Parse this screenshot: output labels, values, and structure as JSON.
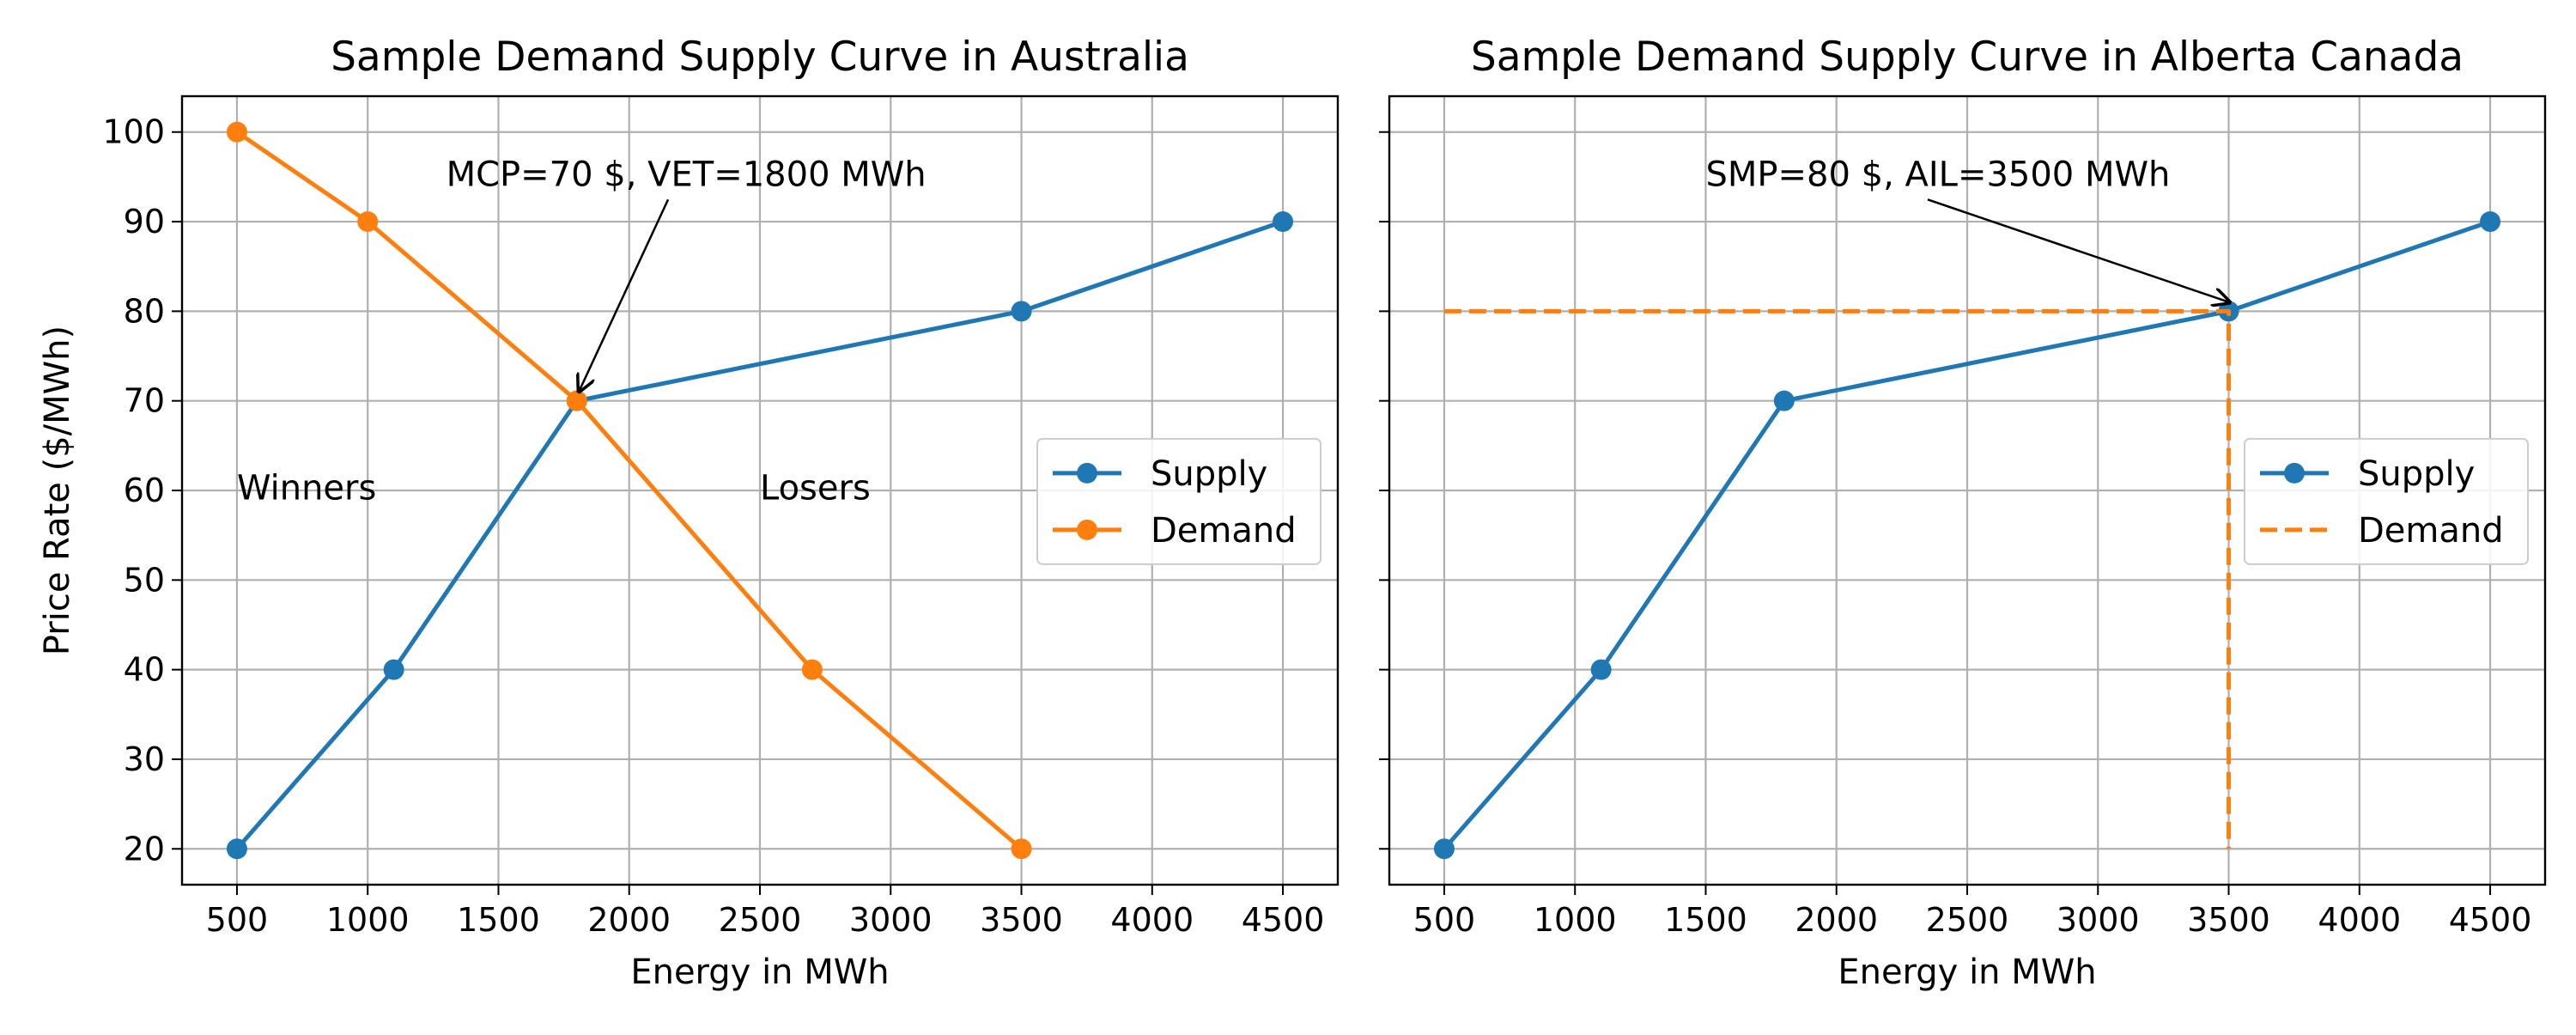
{
  "chart_data": [
    {
      "type": "line",
      "title": "Sample Demand Supply Curve in Australia",
      "xlabel": "Energy in MWh",
      "ylabel": "Price Rate ($/MWh)",
      "xlim": [
        290,
        4710
      ],
      "ylim": [
        16,
        104
      ],
      "xticks": [
        500,
        1000,
        1500,
        2000,
        2500,
        3000,
        3500,
        4000,
        4500
      ],
      "yticks": [
        20,
        30,
        40,
        50,
        60,
        70,
        80,
        90,
        100
      ],
      "grid": true,
      "legend_position": "center-right",
      "series": [
        {
          "name": "Supply",
          "color": "#1f77b4",
          "style": "solid",
          "marker": "circle",
          "x": [
            500,
            1100,
            1800,
            3500,
            4500
          ],
          "y": [
            20,
            40,
            70,
            80,
            90
          ]
        },
        {
          "name": "Demand",
          "color": "#ff7f0e",
          "style": "solid",
          "marker": "circle",
          "x": [
            500,
            1000,
            1800,
            2700,
            3500
          ],
          "y": [
            100,
            90,
            70,
            40,
            20
          ]
        }
      ],
      "annotations": [
        {
          "text": "MCP=70 $, VET=1800 MWh",
          "x": 1300,
          "y": 94,
          "arrow_to": [
            1800,
            70
          ]
        },
        {
          "text": "Winners",
          "x": 500,
          "y": 59
        },
        {
          "text": "Losers",
          "x": 2500,
          "y": 59
        }
      ]
    },
    {
      "type": "line",
      "title": "Sample Demand Supply Curve in Alberta Canada",
      "xlabel": "Energy in MWh",
      "ylabel": "",
      "xlim": [
        290,
        4710
      ],
      "ylim": [
        16,
        104
      ],
      "xticks": [
        500,
        1000,
        1500,
        2000,
        2500,
        3000,
        3500,
        4000,
        4500
      ],
      "yticks": [
        20,
        30,
        40,
        50,
        60,
        70,
        80,
        90,
        100
      ],
      "show_ytick_labels": false,
      "grid": true,
      "legend_position": "center-right",
      "series": [
        {
          "name": "Supply",
          "color": "#1f77b4",
          "style": "solid",
          "marker": "circle",
          "x": [
            500,
            1100,
            1800,
            3500,
            4500
          ],
          "y": [
            20,
            40,
            70,
            80,
            90
          ]
        },
        {
          "name": "Demand",
          "color": "#ff7f0e",
          "style": "dashed",
          "marker": "none",
          "x": [
            500,
            3500,
            3500
          ],
          "y": [
            80,
            80,
            20
          ]
        }
      ],
      "annotations": [
        {
          "text": "SMP=80 $, AIL=3500 MWh",
          "x": 1500,
          "y": 94,
          "arrow_to": [
            3500,
            80
          ]
        }
      ]
    }
  ]
}
